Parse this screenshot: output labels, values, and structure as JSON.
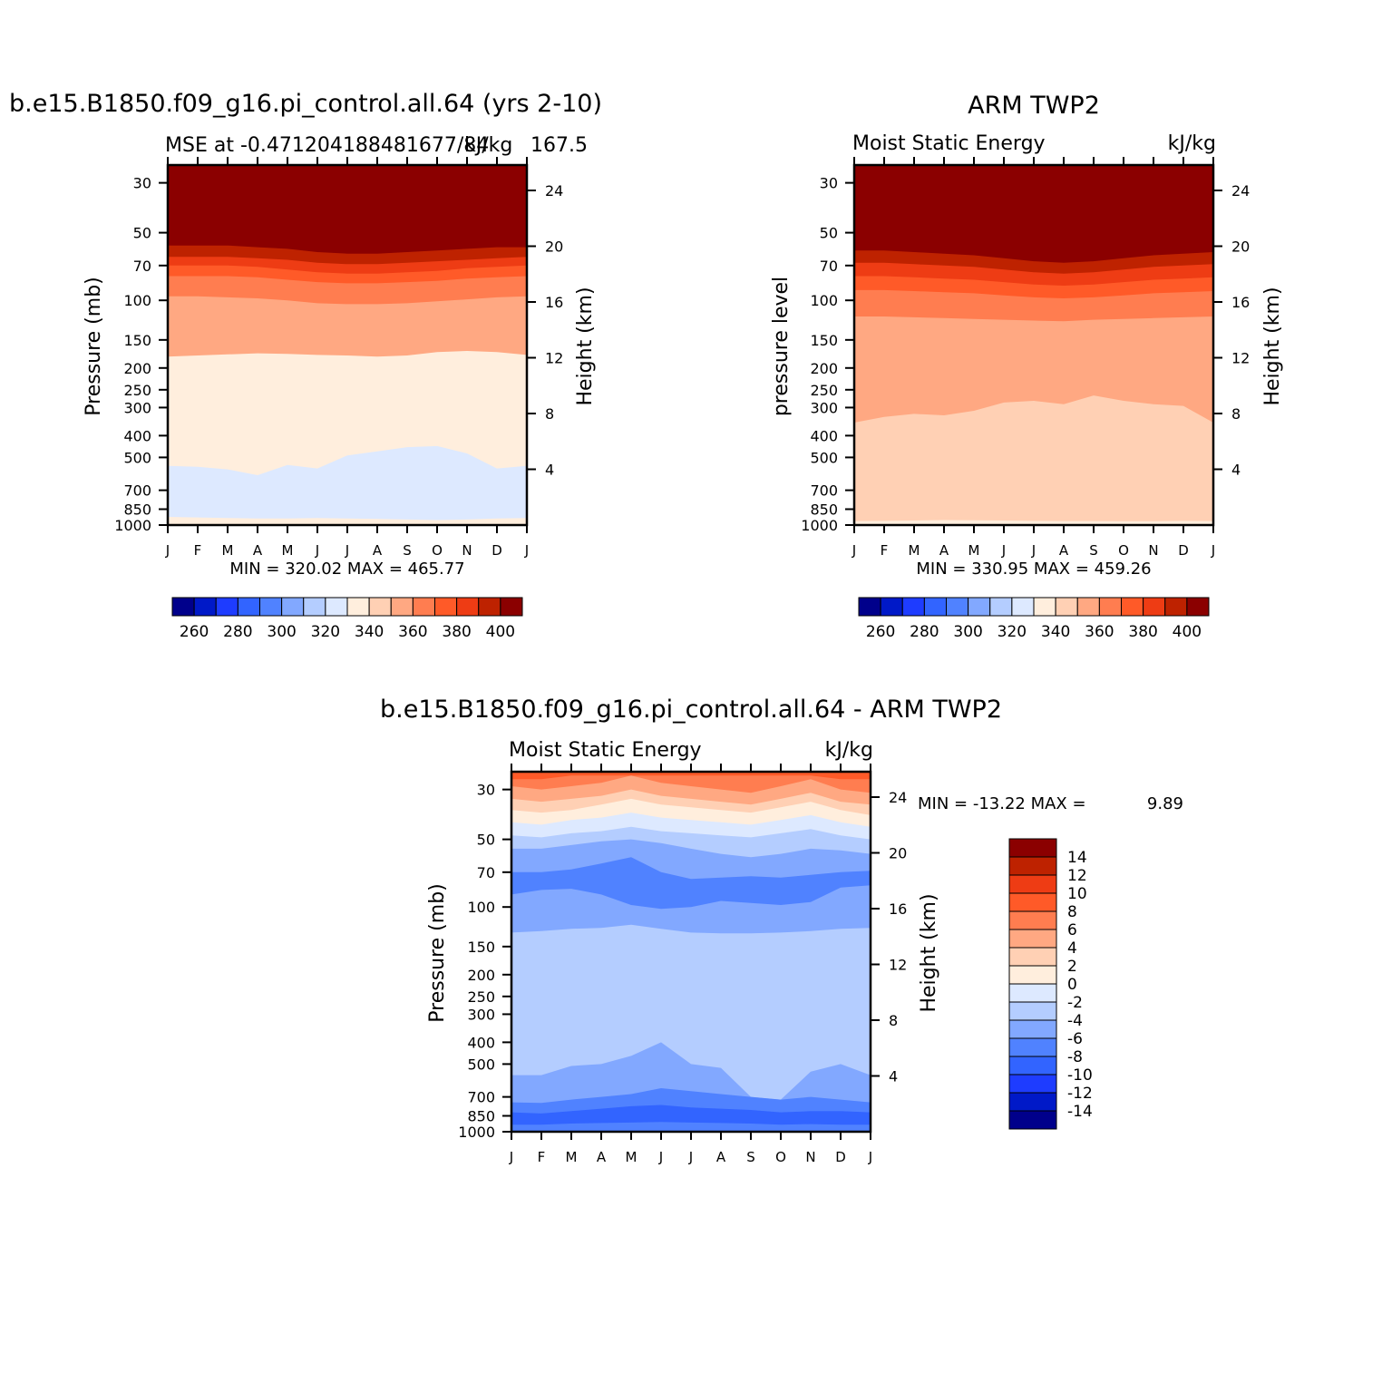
{
  "colors": {
    "mse_scale": [
      "#00008b",
      "#0019c8",
      "#1e3cff",
      "#3264ff",
      "#5082ff",
      "#82a8ff",
      "#b4cdff",
      "#dde9ff",
      "#ffeedd",
      "#ffd0b4",
      "#ffa882",
      "#ff7d50",
      "#ff5a28",
      "#ee3c14",
      "#be2200",
      "#8b0000"
    ],
    "diff_scale": [
      "#00008b",
      "#0019c8",
      "#1e3cff",
      "#3264ff",
      "#5082ff",
      "#82a8ff",
      "#b4cdff",
      "#dde9ff",
      "#ffeedd",
      "#ffd0b4",
      "#ffa882",
      "#ff7d50",
      "#ff5a28",
      "#ee3c14",
      "#be2200",
      "#8b0000"
    ]
  },
  "chart_data": [
    {
      "id": "model",
      "type": "heatmap",
      "title": "b.e15.B1850.f09_g16.pi_control.all.64 (yrs 2-10)",
      "left_subtitle": "MSE at -0.471204188481677/84",
      "right_subtitle": "kJ/kg",
      "right_overlap": "167.5",
      "ylabel": "Pressure (mb)",
      "ylabel_right": "Height (km)",
      "xlabel": "",
      "x_ticks": [
        "J",
        "F",
        "M",
        "A",
        "M",
        "J",
        "J",
        "A",
        "S",
        "O",
        "N",
        "D",
        "J"
      ],
      "pressure_ticks": [
        "30",
        "50",
        "70",
        "100",
        "150",
        "200",
        "250",
        "300",
        "400",
        "500",
        "700",
        "850",
        "1000"
      ],
      "height_ticks": [
        "24",
        "20",
        "16",
        "12",
        "8",
        "4"
      ],
      "stats": "MIN = 320.02  MAX = 465.77",
      "min": 320.02,
      "max": 465.77,
      "colorbar_labels": [
        "260",
        "280",
        "300",
        "320",
        "340",
        "360",
        "380",
        "400"
      ],
      "contour_bands": [
        {
          "color_index": 15,
          "from_mb": 1000,
          "to_mb": 30,
          "above_mb": [
            57,
            57,
            57,
            58,
            59,
            61,
            62,
            62,
            61,
            60,
            59,
            58,
            58
          ]
        },
        {
          "color_index": 14,
          "above_mb": [
            64,
            64,
            64,
            65,
            66,
            68,
            69,
            69,
            68,
            67,
            66,
            65,
            64
          ]
        },
        {
          "color_index": 13,
          "above_mb": [
            70,
            70,
            70,
            71,
            73,
            75,
            76,
            76,
            75,
            74,
            72,
            71,
            70
          ]
        },
        {
          "color_index": 12,
          "above_mb": [
            78,
            78,
            78,
            79,
            81,
            83,
            84,
            84,
            83,
            82,
            80,
            79,
            78
          ]
        },
        {
          "color_index": 11,
          "above_mb": [
            96,
            96,
            97,
            98,
            100,
            103,
            104,
            104,
            103,
            101,
            99,
            97,
            96
          ]
        },
        {
          "color_index": 10,
          "above_mb": [
            178,
            176,
            174,
            172,
            173,
            175,
            176,
            178,
            176,
            170,
            168,
            170,
            175
          ]
        },
        {
          "color_index": 8,
          "above_mb": [
            545,
            550,
            565,
            600,
            540,
            560,
            490,
            470,
            450,
            445,
            480,
            560,
            545
          ]
        },
        {
          "color_index": 7,
          "above_mb": [
            920,
            925,
            930,
            935,
            935,
            930,
            935,
            940,
            945,
            950,
            945,
            935,
            930
          ]
        },
        {
          "color_index": 8,
          "above_mb": [
            1000,
            1000,
            1000,
            1000,
            1000,
            1000,
            1000,
            1000,
            1000,
            1000,
            1000,
            1000,
            1000
          ]
        }
      ]
    },
    {
      "id": "obs",
      "type": "heatmap",
      "title": "ARM TWP2",
      "left_subtitle": "Moist Static Energy",
      "right_subtitle": "kJ/kg",
      "ylabel": "pressure level",
      "ylabel_right": "Height (km)",
      "x_ticks": [
        "J",
        "F",
        "M",
        "A",
        "M",
        "J",
        "J",
        "A",
        "S",
        "O",
        "N",
        "D",
        "J"
      ],
      "pressure_ticks": [
        "30",
        "50",
        "70",
        "100",
        "150",
        "200",
        "250",
        "300",
        "400",
        "500",
        "700",
        "850",
        "1000"
      ],
      "height_ticks": [
        "24",
        "20",
        "16",
        "12",
        "8",
        "4"
      ],
      "stats": "MIN = 330.95  MAX = 459.26",
      "min": 330.95,
      "max": 459.26,
      "colorbar_labels": [
        "260",
        "280",
        "300",
        "320",
        "340",
        "360",
        "380",
        "400"
      ],
      "contour_bands": [
        {
          "color_index": 15,
          "above_mb": [
            60,
            60,
            61,
            62,
            63,
            65,
            67,
            68,
            67,
            65,
            63,
            62,
            61
          ]
        },
        {
          "color_index": 14,
          "above_mb": [
            68,
            68,
            69,
            70,
            71,
            73,
            75,
            76,
            75,
            73,
            71,
            70,
            69
          ]
        },
        {
          "color_index": 13,
          "above_mb": [
            78,
            78,
            79,
            80,
            81,
            83,
            85,
            86,
            85,
            83,
            81,
            80,
            79
          ]
        },
        {
          "color_index": 12,
          "above_mb": [
            90,
            90,
            91,
            92,
            93,
            95,
            97,
            98,
            97,
            95,
            93,
            92,
            91
          ]
        },
        {
          "color_index": 11,
          "above_mb": [
            118,
            118,
            119,
            120,
            121,
            122,
            123,
            124,
            122,
            121,
            120,
            119,
            118
          ]
        },
        {
          "color_index": 10,
          "above_mb": [
            350,
            330,
            320,
            325,
            310,
            285,
            280,
            290,
            265,
            280,
            290,
            295,
            350
          ]
        },
        {
          "color_index": 9,
          "above_mb": [
            960,
            958,
            955,
            950,
            952,
            955,
            958,
            960,
            960,
            962,
            962,
            958,
            960
          ]
        },
        {
          "color_index": 8,
          "above_mb": [
            1000,
            1000,
            1000,
            1000,
            1000,
            1000,
            1000,
            1000,
            1000,
            1000,
            1000,
            1000,
            1000
          ]
        }
      ]
    },
    {
      "id": "diff",
      "type": "heatmap",
      "title": "b.e15.B1850.f09_g16.pi_control.all.64 - ARM TWP2",
      "left_subtitle": "Moist Static Energy",
      "right_subtitle": "kJ/kg",
      "ylabel": "Pressure (mb)",
      "ylabel_right": "Height (km)",
      "x_ticks": [
        "J",
        "F",
        "M",
        "A",
        "M",
        "J",
        "J",
        "A",
        "S",
        "O",
        "N",
        "D",
        "J"
      ],
      "pressure_ticks": [
        "30",
        "50",
        "70",
        "100",
        "150",
        "200",
        "250",
        "300",
        "400",
        "500",
        "700",
        "850",
        "1000"
      ],
      "height_ticks": [
        "24",
        "20",
        "16",
        "12",
        "8",
        "4"
      ],
      "stats_label": "MIN = -13.22 MAX =",
      "stats_max": "9.89",
      "min": -13.22,
      "max": 9.89,
      "colorbar_labels": [
        "14",
        "12",
        "10",
        "8",
        "6",
        "4",
        "2",
        "0",
        "-2",
        "-4",
        "-6",
        "-8",
        "-10",
        "-12",
        "-14"
      ],
      "contour_bands": [
        {
          "color_index": 12,
          "above_mb": [
            27,
            27,
            26,
            26,
            26,
            26,
            26,
            26,
            26,
            26,
            26,
            27,
            27
          ]
        },
        {
          "color_index": 11,
          "above_mb": [
            29,
            30,
            29,
            28,
            26,
            28,
            29,
            30,
            31,
            29,
            27,
            30,
            31
          ]
        },
        {
          "color_index": 10,
          "above_mb": [
            33,
            34,
            33,
            32,
            30,
            32,
            33,
            34,
            35,
            33,
            31,
            34,
            35
          ]
        },
        {
          "color_index": 9,
          "above_mb": [
            37,
            38,
            37,
            35,
            33,
            35,
            36,
            37,
            38,
            36,
            34,
            37,
            39
          ]
        },
        {
          "color_index": 8,
          "above_mb": [
            42,
            43,
            41,
            40,
            38,
            40,
            41,
            42,
            43,
            41,
            39,
            42,
            44
          ]
        },
        {
          "color_index": 7,
          "above_mb": [
            48,
            49,
            47,
            46,
            44,
            46,
            47,
            48,
            49,
            47,
            45,
            48,
            50
          ]
        },
        {
          "color_index": 6,
          "above_mb": [
            55,
            55,
            53,
            51,
            50,
            52,
            55,
            58,
            60,
            58,
            55,
            56,
            58
          ]
        },
        {
          "color_index": 5,
          "above_mb": [
            70,
            70,
            68,
            64,
            60,
            70,
            75,
            74,
            73,
            74,
            72,
            70,
            69
          ]
        },
        {
          "color_index": 4,
          "above_mb": [
            88,
            84,
            83,
            88,
            98,
            102,
            100,
            94,
            96,
            98,
            95,
            82,
            80
          ]
        },
        {
          "color_index": 5,
          "above_mb": [
            130,
            128,
            125,
            124,
            120,
            125,
            130,
            131,
            131,
            130,
            128,
            125,
            124
          ]
        },
        {
          "color_index": 6,
          "above_mb": [
            560,
            560,
            510,
            500,
            460,
            400,
            500,
            520,
            700,
            720,
            540,
            500,
            560
          ]
        },
        {
          "color_index": 5,
          "above_mb": [
            740,
            745,
            720,
            700,
            680,
            640,
            660,
            680,
            700,
            720,
            700,
            720,
            740
          ]
        },
        {
          "color_index": 4,
          "above_mb": [
            820,
            830,
            810,
            790,
            770,
            760,
            780,
            790,
            800,
            820,
            810,
            810,
            820
          ]
        },
        {
          "color_index": 3,
          "above_mb": [
            930,
            930,
            920,
            915,
            910,
            905,
            910,
            915,
            920,
            930,
            925,
            930,
            930
          ]
        },
        {
          "color_index": 4,
          "above_mb": [
            1000,
            1000,
            1000,
            1000,
            1000,
            1000,
            1000,
            1000,
            1000,
            1000,
            1000,
            1000,
            1000
          ]
        }
      ]
    }
  ]
}
